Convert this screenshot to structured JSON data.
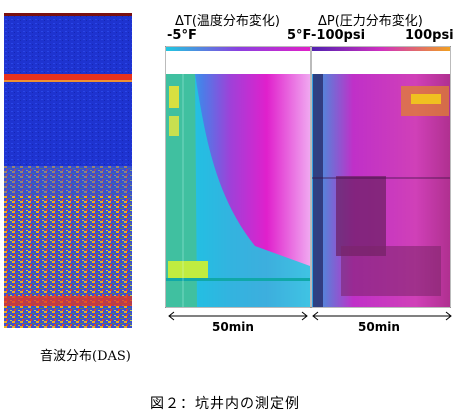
{
  "das": {
    "caption": "音波分布(DAS)"
  },
  "temperature": {
    "title": "ΔT(温度分布変化)",
    "range_min": "-5°F",
    "range_max": "5°F"
  },
  "pressure": {
    "title": "ΔP(圧力分布変化)",
    "range_min": "-100psi",
    "range_max": "100psi"
  },
  "time_axis": {
    "left_label": "50min",
    "right_label": "50min"
  },
  "figure": {
    "caption": "図２：坑井内の測定例"
  },
  "colors": {
    "das_background": "#1a2fcf",
    "das_hot": "#e8321e",
    "temperature_low": "#22e0f0",
    "temperature_high": "#d61fd2",
    "pressure_low": "#5a1f6e",
    "pressure_high": "#f0a020"
  }
}
